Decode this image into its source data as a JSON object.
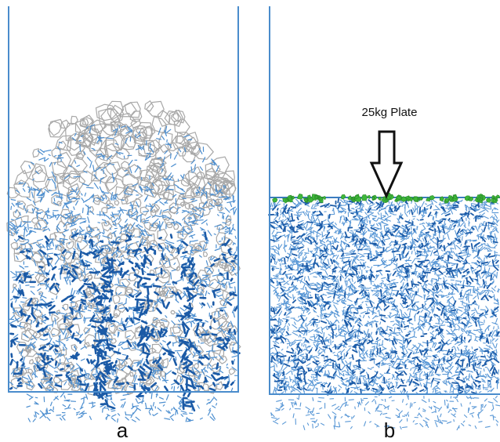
{
  "panels": [
    {
      "label": "a"
    },
    {
      "label": "b",
      "annotation": "25kg Plate"
    }
  ]
}
